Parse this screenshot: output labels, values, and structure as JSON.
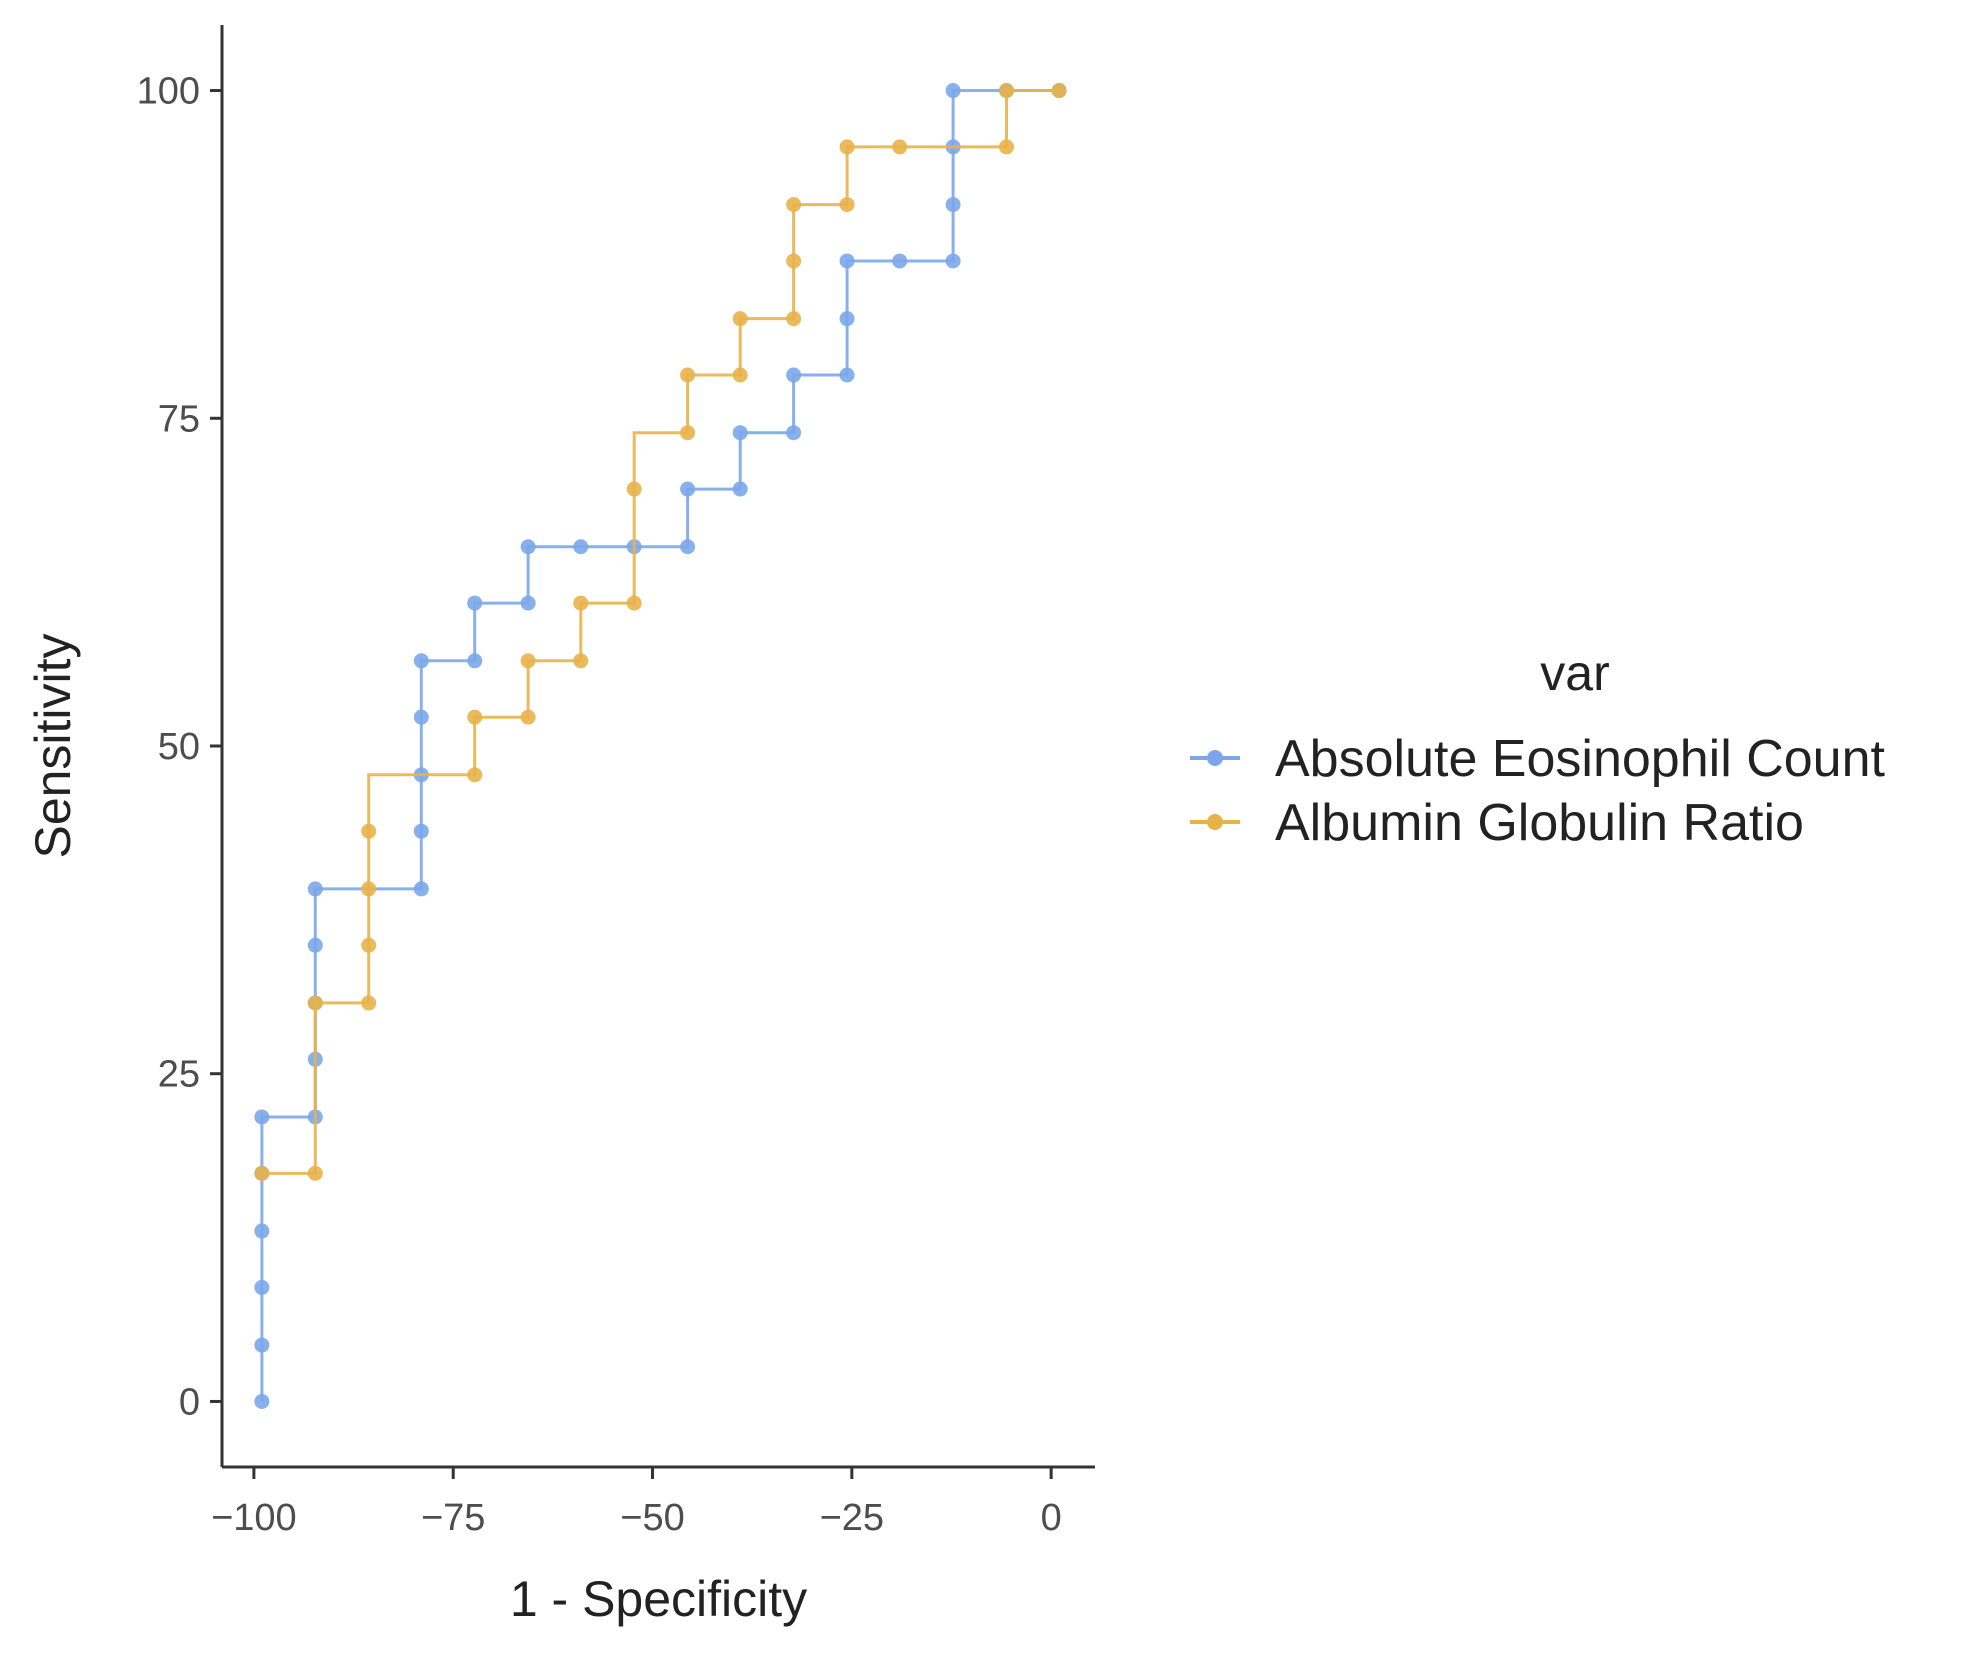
{
  "chart_data": {
    "type": "line",
    "title": "",
    "xlabel": "1 - Specificity",
    "ylabel": "Sensitivity",
    "xlim": [
      -104,
      5.5
    ],
    "ylim": [
      -5,
      105
    ],
    "xticks": [
      -100,
      -75,
      -50,
      -25,
      0
    ],
    "yticks": [
      0,
      25,
      50,
      75,
      100
    ],
    "xtick_labels": [
      "−100",
      "−75",
      "−50",
      "−25",
      "0"
    ],
    "ytick_labels": [
      "0",
      "25",
      "50",
      "75",
      "100"
    ],
    "grid": false,
    "legend": {
      "title": "var",
      "position": "right"
    },
    "step": "vertical-then-horizontal",
    "series": [
      {
        "name": "Absolute Eosinophil Count",
        "color": "#7ba7ea",
        "x": [
          -99,
          -99,
          -99,
          -99,
          -99,
          -99,
          -92.3,
          -92.3,
          -92.3,
          -92.3,
          -92.3,
          -79,
          -79,
          -79,
          -79,
          -79,
          -72.3,
          -72.3,
          -65.6,
          -65.6,
          -59,
          -52.3,
          -45.6,
          -45.6,
          -39,
          -39,
          -32.3,
          -32.3,
          -25.6,
          -25.6,
          -25.6,
          -19,
          -12.3,
          -12.3,
          -12.3,
          -12.3,
          -5.6,
          1
        ],
        "y": [
          0,
          4.3,
          8.7,
          13,
          17.4,
          21.7,
          21.7,
          26.1,
          30.4,
          34.8,
          39.1,
          39.1,
          43.5,
          47.8,
          52.2,
          56.5,
          56.5,
          60.9,
          60.9,
          65.2,
          65.2,
          65.2,
          65.2,
          69.6,
          69.6,
          73.9,
          73.9,
          78.3,
          78.3,
          82.6,
          87,
          87,
          87,
          91.3,
          95.7,
          100,
          100,
          100
        ]
      },
      {
        "name": "Albumin Globulin Ratio",
        "color": "#e8b24a",
        "x": [
          -99,
          -92.3,
          -92.3,
          -85.6,
          -85.6,
          -85.6,
          -85.6,
          -72.3,
          -72.3,
          -65.6,
          -65.6,
          -59,
          -59,
          -52.3,
          -52.3,
          -45.6,
          -45.6,
          -39,
          -39,
          -32.3,
          -32.3,
          -32.3,
          -25.6,
          -25.6,
          -19,
          -5.6,
          -5.6,
          1
        ],
        "y": [
          17.4,
          17.4,
          30.4,
          30.4,
          34.8,
          39.1,
          43.5,
          47.8,
          52.2,
          52.2,
          56.5,
          56.5,
          60.9,
          60.9,
          69.6,
          73.9,
          78.3,
          78.3,
          82.6,
          82.6,
          87,
          91.3,
          91.3,
          95.7,
          95.7,
          95.7,
          100,
          100
        ]
      }
    ]
  }
}
